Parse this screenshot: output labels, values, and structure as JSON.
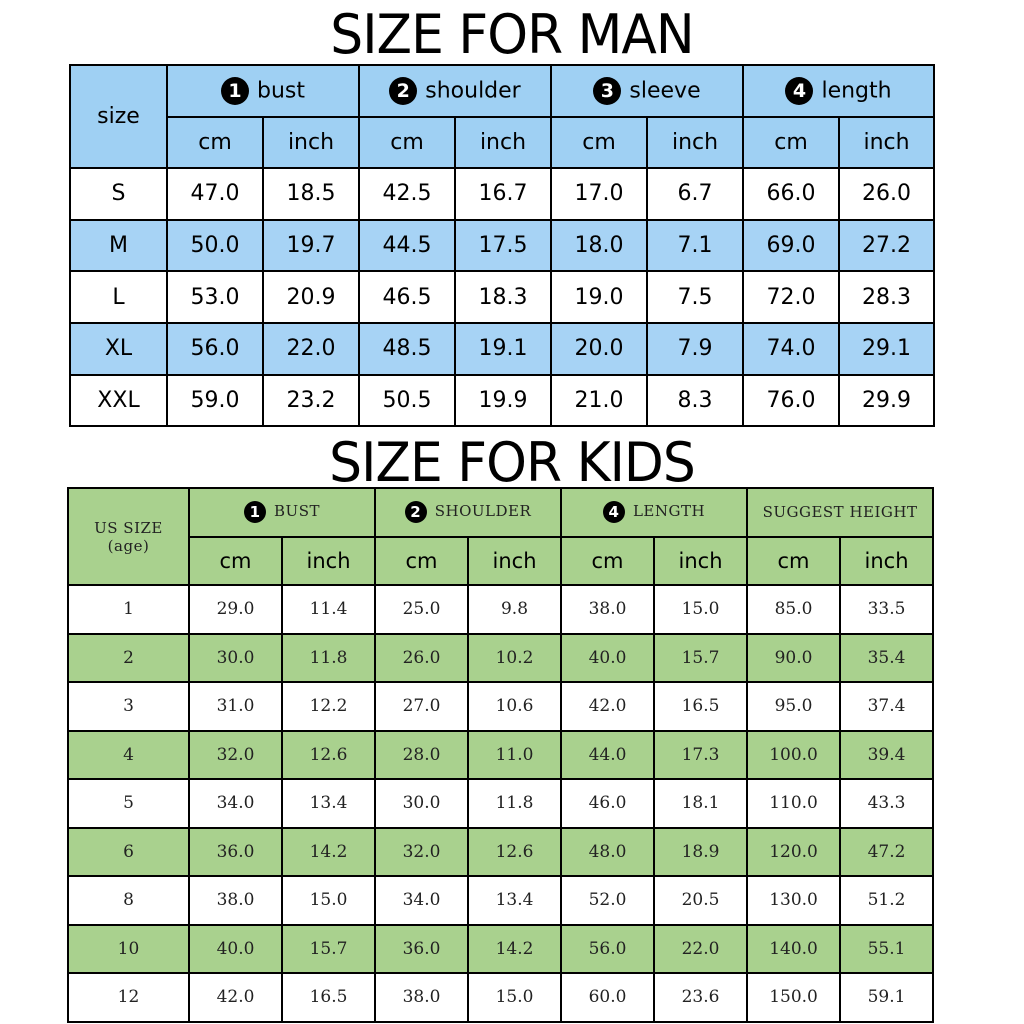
{
  "man": {
    "title": "SIZE FOR MAN",
    "corner": "size",
    "groups": [
      {
        "num": "1",
        "label": "bust"
      },
      {
        "num": "2",
        "label": "shoulder"
      },
      {
        "num": "3",
        "label": "sleeve"
      },
      {
        "num": "4",
        "label": "length"
      }
    ],
    "units": [
      "cm",
      "inch",
      "cm",
      "inch",
      "cm",
      "inch",
      "cm",
      "inch"
    ],
    "rows": [
      {
        "size": "S",
        "values": [
          "47.0",
          "18.5",
          "42.5",
          "16.7",
          "17.0",
          "6.7",
          "66.0",
          "26.0"
        ]
      },
      {
        "size": "M",
        "values": [
          "50.0",
          "19.7",
          "44.5",
          "17.5",
          "18.0",
          "7.1",
          "69.0",
          "27.2"
        ]
      },
      {
        "size": "L",
        "values": [
          "53.0",
          "20.9",
          "46.5",
          "18.3",
          "19.0",
          "7.5",
          "72.0",
          "28.3"
        ]
      },
      {
        "size": "XL",
        "values": [
          "56.0",
          "22.0",
          "48.5",
          "19.1",
          "20.0",
          "7.9",
          "74.0",
          "29.1"
        ]
      },
      {
        "size": "XXL",
        "values": [
          "59.0",
          "23.2",
          "50.5",
          "19.9",
          "21.0",
          "8.3",
          "76.0",
          "29.9"
        ]
      }
    ],
    "colors": {
      "header": "#9fd0f3",
      "stripe": "#a7d3f5"
    }
  },
  "kids": {
    "title": "SIZE FOR KIDS",
    "corner_line1": "US SIZE",
    "corner_line2": "(age)",
    "groups": [
      {
        "num": "1",
        "label": "BUST"
      },
      {
        "num": "2",
        "label": "SHOULDER"
      },
      {
        "num": "4",
        "label": "LENGTH"
      },
      {
        "num": "",
        "label": "SUGGEST HEIGHT"
      }
    ],
    "units": [
      "cm",
      "inch",
      "cm",
      "inch",
      "cm",
      "inch",
      "cm",
      "inch"
    ],
    "rows": [
      {
        "size": "1",
        "values": [
          "29.0",
          "11.4",
          "25.0",
          "9.8",
          "38.0",
          "15.0",
          "85.0",
          "33.5"
        ]
      },
      {
        "size": "2",
        "values": [
          "30.0",
          "11.8",
          "26.0",
          "10.2",
          "40.0",
          "15.7",
          "90.0",
          "35.4"
        ]
      },
      {
        "size": "3",
        "values": [
          "31.0",
          "12.2",
          "27.0",
          "10.6",
          "42.0",
          "16.5",
          "95.0",
          "37.4"
        ]
      },
      {
        "size": "4",
        "values": [
          "32.0",
          "12.6",
          "28.0",
          "11.0",
          "44.0",
          "17.3",
          "100.0",
          "39.4"
        ]
      },
      {
        "size": "5",
        "values": [
          "34.0",
          "13.4",
          "30.0",
          "11.8",
          "46.0",
          "18.1",
          "110.0",
          "43.3"
        ]
      },
      {
        "size": "6",
        "values": [
          "36.0",
          "14.2",
          "32.0",
          "12.6",
          "48.0",
          "18.9",
          "120.0",
          "47.2"
        ]
      },
      {
        "size": "8",
        "values": [
          "38.0",
          "15.0",
          "34.0",
          "13.4",
          "52.0",
          "20.5",
          "130.0",
          "51.2"
        ]
      },
      {
        "size": "10",
        "values": [
          "40.0",
          "15.7",
          "36.0",
          "14.2",
          "56.0",
          "22.0",
          "140.0",
          "55.1"
        ]
      },
      {
        "size": "12",
        "values": [
          "42.0",
          "16.5",
          "38.0",
          "15.0",
          "60.0",
          "23.6",
          "150.0",
          "59.1"
        ]
      }
    ],
    "colors": {
      "header": "#a9d18e",
      "stripe": "#a9d18e"
    }
  }
}
